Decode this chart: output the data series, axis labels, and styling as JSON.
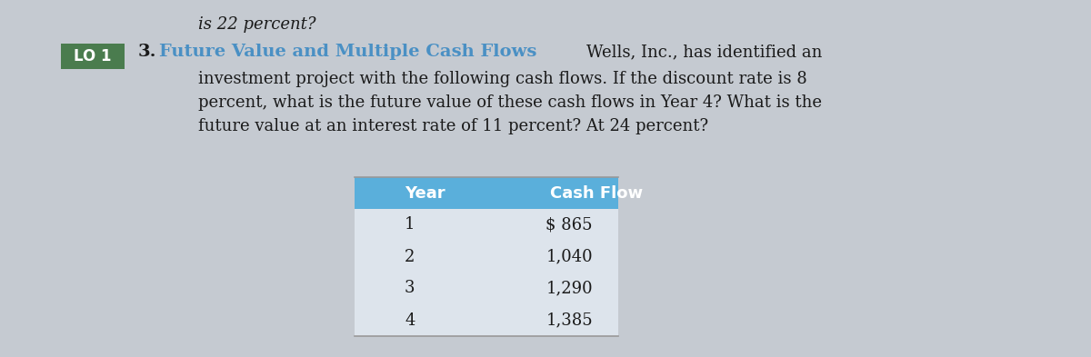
{
  "background_color": "#c5cad1",
  "top_text": "is 22 percent?",
  "lo_label": "LO 1",
  "lo_bg_color": "#4a7c4e",
  "lo_text_color": "#ffffff",
  "problem_number": "3.",
  "problem_title": "Future Value and Multiple Cash Flows",
  "title_color": "#4a90c4",
  "body_line1": "Wells, Inc., has identified an",
  "body_line2": "investment project with the following cash flows. If the discount rate is 8",
  "body_line3": "percent, what is the future value of these cash flows in Year 4? What is the",
  "body_line4": "future value at an interest rate of 11 percent? At 24 percent?",
  "table_header_bg": "#5aafdb",
  "table_header_text_color": "#ffffff",
  "table_data_bg": "#dde4ec",
  "table_years": [
    "1",
    "2",
    "3",
    "4"
  ],
  "table_cash_flows": [
    "$ 865",
    "1,040",
    "1,290",
    "1,385"
  ],
  "col_header_year": "Year",
  "col_header_cf": "Cash Flow"
}
